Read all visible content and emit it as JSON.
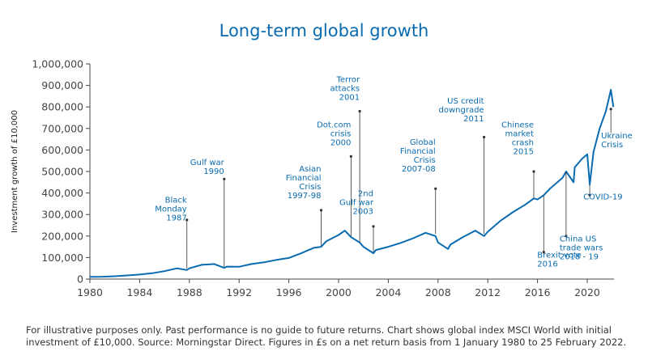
{
  "chart_data": {
    "type": "line",
    "title": "Long-term global growth",
    "ylabel": "Investment growth of £10,000",
    "xlabel": "",
    "xlim": [
      1980,
      2022.15
    ],
    "ylim": [
      0,
      1000000
    ],
    "x_ticks": [
      1980,
      1984,
      1988,
      1992,
      1996,
      2000,
      2004,
      2008,
      2012,
      2016,
      2020
    ],
    "y_ticks": [
      {
        "value": 0,
        "label": "0"
      },
      {
        "value": 100000,
        "label": "100,000"
      },
      {
        "value": 200000,
        "label": "200,000"
      },
      {
        "value": 300000,
        "label": "300,000"
      },
      {
        "value": 400000,
        "label": "400,000"
      },
      {
        "value": 500000,
        "label": "500,000"
      },
      {
        "value": 600000,
        "label": "600,000"
      },
      {
        "value": 700000,
        "label": "700,000"
      },
      {
        "value": 800000,
        "label": "800,000"
      },
      {
        "value": 900000,
        "label": "900,000"
      },
      {
        "value": 1000000,
        "label": "1,000,000"
      }
    ],
    "grid": false,
    "color": "#0a6cb0",
    "series": [
      {
        "x": [
          1980,
          1981,
          1982,
          1983,
          1984,
          1985,
          1986,
          1987,
          1987.8,
          1988,
          1989,
          1990,
          1990.8,
          1991,
          1992,
          1993,
          1994,
          1995,
          1996,
          1997,
          1998,
          1998.6,
          1999,
          2000,
          2000.5,
          2001,
          2001.7,
          2002,
          2002.8,
          2003,
          2004,
          2005,
          2006,
          2007,
          2007.8,
          2008,
          2008.8,
          2009,
          2010,
          2011,
          2011.7,
          2012,
          2013,
          2014,
          2015,
          2015.7,
          2016,
          2016.5,
          2017,
          2018,
          2018.3,
          2018.9,
          2019,
          2019.6,
          2020,
          2020.2,
          2020.5,
          2021,
          2021.5,
          2021.9,
          2022.1
        ],
        "y": [
          10000,
          11000,
          13000,
          17000,
          21000,
          27000,
          37000,
          50000,
          42000,
          50000,
          66000,
          70000,
          52000,
          58000,
          57000,
          70000,
          78000,
          89000,
          98000,
          120000,
          145000,
          150000,
          175000,
          205000,
          225000,
          195000,
          170000,
          150000,
          120000,
          135000,
          150000,
          168000,
          190000,
          215000,
          200000,
          170000,
          140000,
          160000,
          195000,
          225000,
          200000,
          220000,
          270000,
          310000,
          345000,
          375000,
          370000,
          390000,
          420000,
          470000,
          500000,
          450000,
          520000,
          560000,
          580000,
          440000,
          590000,
          700000,
          780000,
          880000,
          800000
        ]
      }
    ],
    "annotations": [
      {
        "lines": [
          "Black",
          "Monday",
          "1987"
        ],
        "x": 1987.8,
        "y_top": 275000,
        "y_bottom": 50000,
        "label_y": 355000
      },
      {
        "lines": [
          "Gulf war",
          "1990"
        ],
        "x": 1990.8,
        "y_top": 465000,
        "y_bottom": 55000,
        "label_y": 530000
      },
      {
        "lines": [
          "Asian",
          "Financial",
          "Crisis",
          "1997-98"
        ],
        "x": 1998.6,
        "y_top": 320000,
        "y_bottom": 155000,
        "label_y": 500000
      },
      {
        "lines": [
          "Dot.com",
          "crisis",
          "2000"
        ],
        "x": 2001.0,
        "y_top": 570000,
        "y_bottom": 200000,
        "label_y": 705000
      },
      {
        "lines": [
          "Terror",
          "attacks",
          "2001"
        ],
        "x": 2001.7,
        "y_top": 780000,
        "y_bottom": 170000,
        "label_y": 915000
      },
      {
        "lines": [
          "2nd",
          "Gulf war",
          "2003"
        ],
        "x": 2002.8,
        "y_top": 245000,
        "y_bottom": 125000,
        "label_y": 385000
      },
      {
        "lines": [
          "Global",
          "Financial",
          "Crisis",
          "2007-08"
        ],
        "x": 2007.8,
        "y_top": 420000,
        "y_bottom": 210000,
        "label_y": 625000
      },
      {
        "lines": [
          "US credit",
          "downgrade",
          "2011"
        ],
        "x": 2011.7,
        "y_top": 660000,
        "y_bottom": 210000,
        "label_y": 815000
      },
      {
        "lines": [
          "Chinese",
          "market",
          "crash",
          "2015"
        ],
        "x": 2015.7,
        "y_top": 500000,
        "y_bottom": 375000,
        "label_y": 705000
      },
      {
        "lines": [
          "Ukraine",
          "Crisis"
        ],
        "x": 2021.9,
        "y_top": 790000,
        "y_bottom": 680000,
        "label_y": 655000,
        "label_side": "right"
      },
      {
        "lines": [
          "COVID-19"
        ],
        "x": 2020.2,
        "y_top": 440000,
        "y_bottom": 390000,
        "label_y": 370000,
        "label_side": "below"
      },
      {
        "lines": [
          "Brexit vote",
          "2016"
        ],
        "x": 2016.5,
        "y_top": 390000,
        "y_bottom": 125000,
        "label_y": 100000,
        "label_side": "below"
      },
      {
        "lines": [
          "China US",
          "trade wars",
          "2018 - 19"
        ],
        "x": 2018.3,
        "y_top": 500000,
        "y_bottom": 200000,
        "label_y": 175000,
        "label_side": "below"
      }
    ]
  },
  "footnote": "For illustrative purposes only. Past performance is no guide to future returns. Chart shows global index MSCI World with initial investment of £10,000. Source: Morningstar Direct. Figures in £s on a net return basis from 1 January 1980 to 25 February 2022."
}
